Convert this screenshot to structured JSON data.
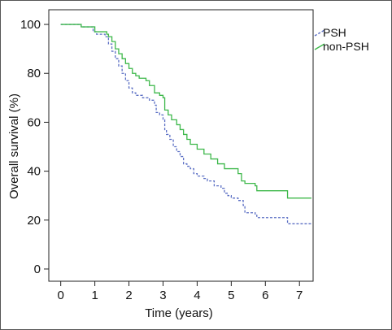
{
  "chart_data": {
    "type": "line",
    "title": "",
    "xlabel": "Time (years)",
    "ylabel": "Overall survival (%)",
    "xlim": [
      -0.35,
      7.4
    ],
    "ylim": [
      -5,
      106
    ],
    "xticks": [
      "0",
      "1",
      "2",
      "3",
      "4",
      "5",
      "6",
      "7"
    ],
    "yticks": [
      "0",
      "20",
      "40",
      "60",
      "80",
      "100"
    ],
    "xtick_values": [
      0,
      1,
      2,
      3,
      4,
      5,
      6,
      7
    ],
    "ytick_values": [
      0,
      20,
      40,
      60,
      80,
      100
    ],
    "legend_position": "top-right",
    "series": [
      {
        "name": "PSH",
        "color": "#5b6fc4",
        "dash": "dashed",
        "points": [
          [
            0,
            100
          ],
          [
            0.55,
            100
          ],
          [
            0.6,
            99
          ],
          [
            0.9,
            99
          ],
          [
            0.95,
            97
          ],
          [
            1.05,
            96
          ],
          [
            1.3,
            95
          ],
          [
            1.4,
            92
          ],
          [
            1.5,
            89
          ],
          [
            1.6,
            86
          ],
          [
            1.7,
            83
          ],
          [
            1.8,
            80
          ],
          [
            1.9,
            77
          ],
          [
            2.0,
            74
          ],
          [
            2.1,
            72
          ],
          [
            2.2,
            71
          ],
          [
            2.4,
            70
          ],
          [
            2.6,
            69
          ],
          [
            2.75,
            67
          ],
          [
            2.8,
            64
          ],
          [
            2.9,
            63
          ],
          [
            3.0,
            61
          ],
          [
            3.05,
            57
          ],
          [
            3.1,
            55
          ],
          [
            3.2,
            53
          ],
          [
            3.3,
            50
          ],
          [
            3.4,
            48
          ],
          [
            3.5,
            46
          ],
          [
            3.6,
            43
          ],
          [
            3.7,
            42
          ],
          [
            3.8,
            41
          ],
          [
            3.9,
            39
          ],
          [
            4.0,
            38
          ],
          [
            4.2,
            37
          ],
          [
            4.3,
            36
          ],
          [
            4.5,
            34
          ],
          [
            4.7,
            33
          ],
          [
            4.8,
            31
          ],
          [
            4.9,
            30
          ],
          [
            5.0,
            29
          ],
          [
            5.2,
            28
          ],
          [
            5.35,
            26
          ],
          [
            5.4,
            23
          ],
          [
            5.7,
            22
          ],
          [
            5.75,
            21
          ],
          [
            6.6,
            21
          ],
          [
            6.65,
            18.5
          ],
          [
            7.35,
            18.5
          ]
        ]
      },
      {
        "name": "non-PSH",
        "color": "#3db84a",
        "dash": "solid",
        "points": [
          [
            0,
            100
          ],
          [
            0.5,
            100
          ],
          [
            0.6,
            99
          ],
          [
            0.95,
            99
          ],
          [
            1.0,
            97
          ],
          [
            1.35,
            96
          ],
          [
            1.4,
            95
          ],
          [
            1.5,
            93
          ],
          [
            1.6,
            90
          ],
          [
            1.7,
            88
          ],
          [
            1.8,
            86
          ],
          [
            1.9,
            84
          ],
          [
            2.0,
            82
          ],
          [
            2.1,
            80
          ],
          [
            2.2,
            79
          ],
          [
            2.3,
            78
          ],
          [
            2.5,
            77
          ],
          [
            2.6,
            75
          ],
          [
            2.75,
            72
          ],
          [
            2.9,
            71
          ],
          [
            3.0,
            70
          ],
          [
            3.05,
            65
          ],
          [
            3.15,
            63
          ],
          [
            3.25,
            61
          ],
          [
            3.4,
            59
          ],
          [
            3.5,
            57
          ],
          [
            3.6,
            55
          ],
          [
            3.7,
            53
          ],
          [
            3.8,
            51
          ],
          [
            4.0,
            49
          ],
          [
            4.2,
            47
          ],
          [
            4.4,
            45
          ],
          [
            4.6,
            43
          ],
          [
            4.8,
            41
          ],
          [
            5.2,
            39
          ],
          [
            5.3,
            36
          ],
          [
            5.4,
            35
          ],
          [
            5.7,
            34
          ],
          [
            5.75,
            32
          ],
          [
            6.6,
            32
          ],
          [
            6.65,
            29
          ],
          [
            7.35,
            29
          ]
        ]
      }
    ]
  }
}
